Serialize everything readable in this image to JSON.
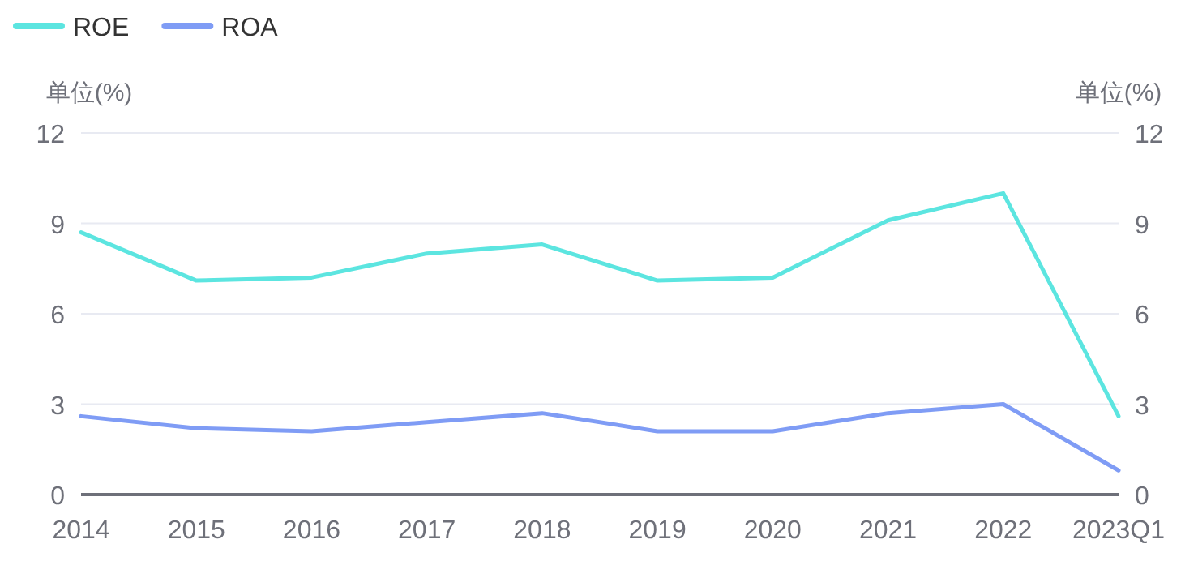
{
  "chart_data": {
    "type": "line",
    "categories": [
      "2014",
      "2015",
      "2016",
      "2017",
      "2018",
      "2019",
      "2020",
      "2021",
      "2022",
      "2023Q1"
    ],
    "series": [
      {
        "name": "ROE",
        "color": "#5ce5e0",
        "values": [
          8.7,
          7.1,
          7.2,
          8.0,
          8.3,
          7.1,
          7.2,
          9.1,
          10.0,
          2.6
        ]
      },
      {
        "name": "ROA",
        "color": "#7f9cf5",
        "values": [
          2.6,
          2.2,
          2.1,
          2.4,
          2.7,
          2.1,
          2.1,
          2.7,
          3.0,
          0.8
        ]
      }
    ],
    "ylabel": "单位(%)",
    "y2label": "单位(%)",
    "ylim": [
      0,
      12
    ],
    "yticks": [
      0,
      3,
      6,
      9,
      12
    ],
    "y2lim": [
      0,
      12
    ],
    "y2ticks": [
      0,
      3,
      6,
      9,
      12
    ],
    "grid": "y",
    "legend": "top left"
  }
}
